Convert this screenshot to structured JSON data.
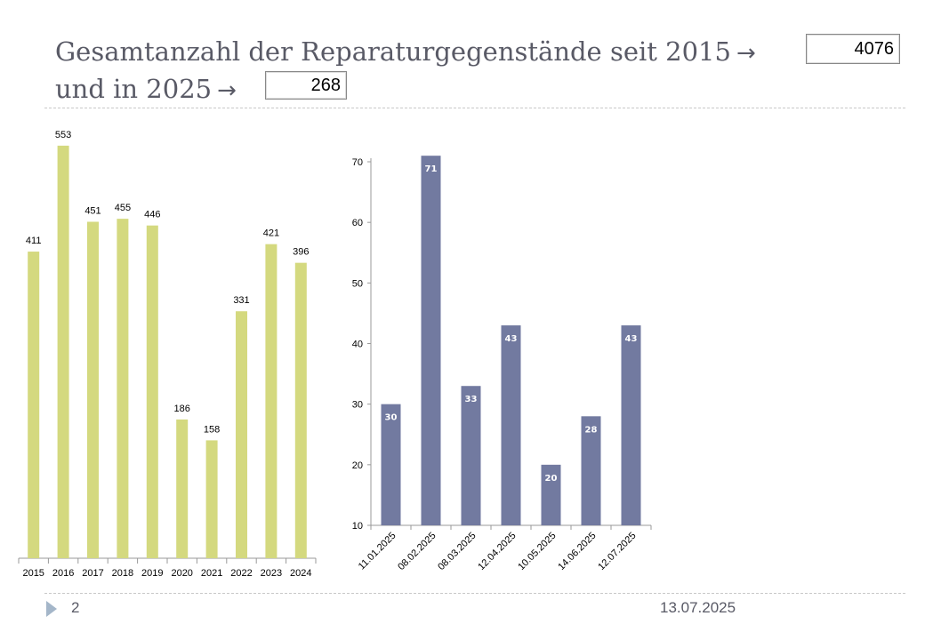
{
  "slide": {
    "title_line1": "Gesamtanzahl der Reparaturgegenstände seit 2015",
    "title_line2": "und in 2025",
    "arrow": "→",
    "total_since_2015": "4076",
    "total_2025": "268",
    "page_number": "2",
    "date": "13.07.2025"
  },
  "colors": {
    "yearly_bar": "#d4d97f",
    "monthly_bar": "#727aa0",
    "axis": "#999999"
  },
  "chart_data": [
    {
      "type": "bar",
      "categories": [
        "2015",
        "2016",
        "2017",
        "2018",
        "2019",
        "2020",
        "2021",
        "2022",
        "2023",
        "2024"
      ],
      "values": [
        411,
        553,
        451,
        455,
        446,
        186,
        158,
        331,
        421,
        396
      ],
      "ylim": [
        0,
        560
      ],
      "grid": false,
      "data_labels": "above",
      "title": "",
      "xlabel": "",
      "ylabel": ""
    },
    {
      "type": "bar",
      "categories": [
        "11.01.2025",
        "08.02.2025",
        "08.03.2025",
        "12.04.2025",
        "10.05.2025",
        "14.06.2025",
        "12.07.2025"
      ],
      "values": [
        30,
        71,
        33,
        43,
        20,
        28,
        43
      ],
      "ylim": [
        10,
        70
      ],
      "yticks": [
        10,
        20,
        30,
        40,
        50,
        60,
        70
      ],
      "grid": false,
      "data_labels": "inside-top",
      "title": "",
      "xlabel": "",
      "ylabel": ""
    }
  ]
}
